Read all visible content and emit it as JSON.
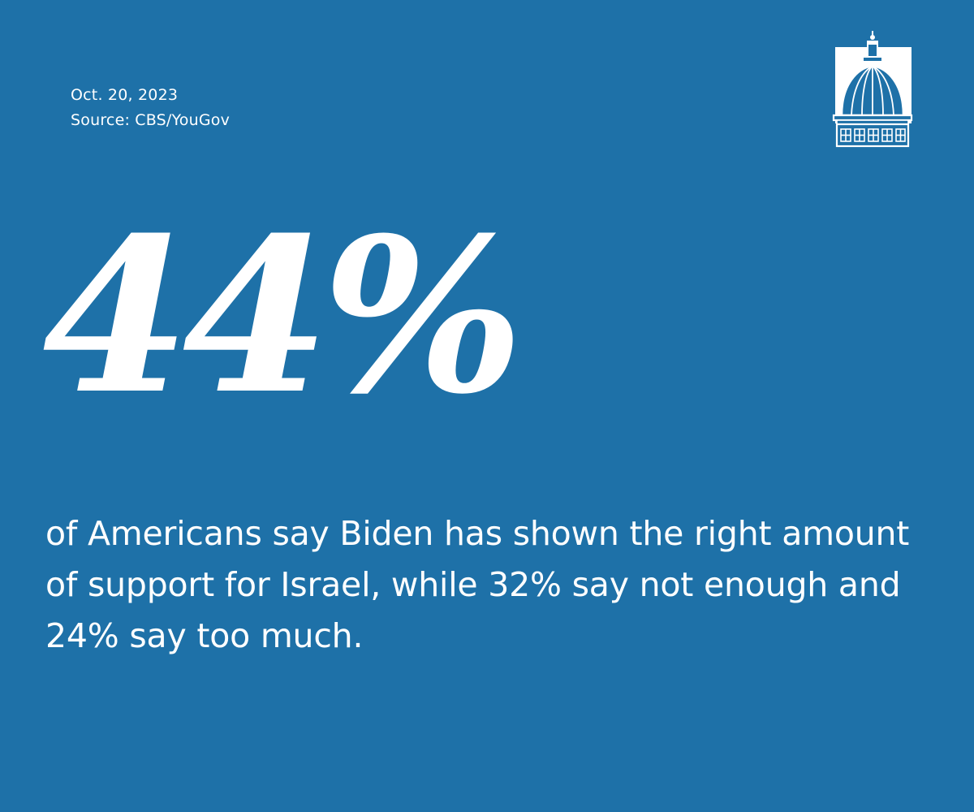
{
  "header": {
    "date": "Oct. 20, 2023",
    "source": "Source: CBS/YouGov"
  },
  "logo": {
    "icon": "capitol-dome-icon"
  },
  "stat": {
    "value": "44%"
  },
  "description": {
    "text": "of Americans say Biden has shown the right amount of support for Israel, while 32% say not enough and 24% say too much."
  },
  "colors": {
    "background": "#1e71a8",
    "text": "#ffffff"
  }
}
